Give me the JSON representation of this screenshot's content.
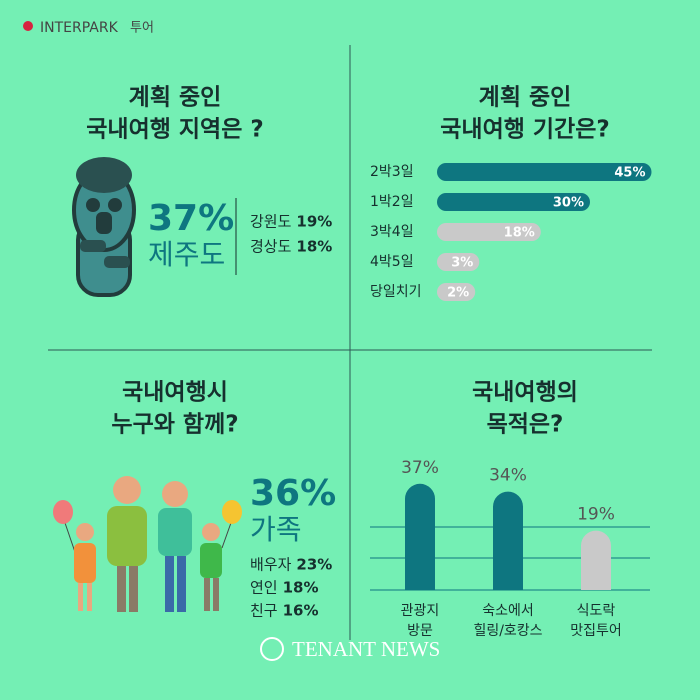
{
  "logo": {
    "brand": "INTERPARK",
    "suffix": "투어"
  },
  "chart_data": [
    {
      "type": "stat",
      "title": [
        "계획 중인",
        "국내여행 지역은 ?"
      ],
      "highlight": {
        "label": "37%",
        "name": "제주도"
      },
      "others": [
        {
          "name": "강원도",
          "label": "19%"
        },
        {
          "name": "경상도",
          "label": "18%"
        }
      ]
    },
    {
      "type": "hbar",
      "title": [
        "계획 중인",
        "국내여행 기간은?"
      ],
      "categories": [
        "2박3일",
        "1박2일",
        "3박4일",
        "4박5일",
        "당일치기"
      ],
      "values": [
        45,
        30,
        18,
        3,
        2
      ],
      "value_labels": [
        "45%",
        "30%",
        "18%",
        "3%",
        "2%"
      ],
      "colors": [
        "#0e7680",
        "#0e7680",
        "#c9c9c9",
        "#c9c9c9",
        "#c9c9c9"
      ]
    },
    {
      "type": "stat",
      "title": [
        "국내여행시",
        "누구와 함께?"
      ],
      "highlight": {
        "label": "36%",
        "name": "가족"
      },
      "others": [
        {
          "name": "배우자",
          "label": "23%"
        },
        {
          "name": "연인",
          "label": "18%"
        },
        {
          "name": "친구",
          "label": "16%"
        }
      ]
    },
    {
      "type": "vbar",
      "title": [
        "국내여행의",
        "목적은?"
      ],
      "categories": [
        [
          "관광지",
          "방문"
        ],
        [
          "숙소에서",
          "힐링/호캉스"
        ],
        [
          "식도락",
          "맛집투어"
        ]
      ],
      "values": [
        37,
        34,
        19
      ],
      "value_labels": [
        "37%",
        "34%",
        "19%"
      ],
      "colors": [
        "#0e7680",
        "#0e7680",
        "#c9c9c9"
      ]
    }
  ],
  "footer": "TENANT NEWS"
}
